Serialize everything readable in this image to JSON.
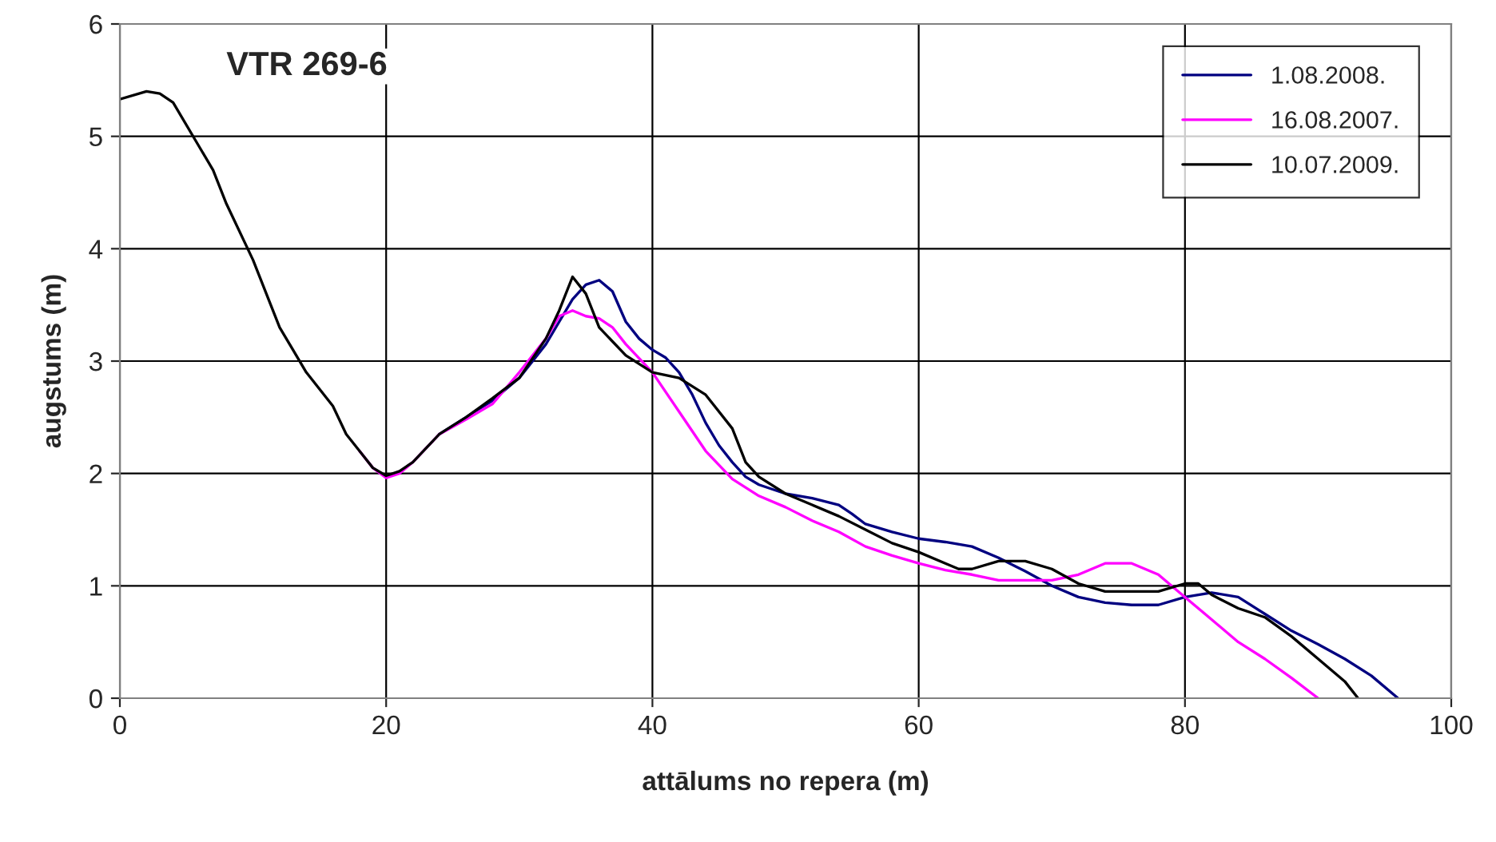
{
  "chart_data": {
    "type": "line",
    "title": "VTR 269-6",
    "xlabel": "attālums no repera (m)",
    "ylabel": "augstums (m)",
    "xlim": [
      0,
      100
    ],
    "xticks": [
      0,
      20,
      40,
      60,
      80,
      100
    ],
    "ylim": [
      0,
      6
    ],
    "yticks": [
      0,
      1,
      2,
      3,
      4,
      5,
      6
    ],
    "grid": true,
    "legend": "top right",
    "line_style": "solid",
    "marker": "none",
    "series": [
      {
        "name": "1.08.2008.",
        "color": "#000080",
        "x": [
          24,
          26,
          28,
          30,
          32,
          33,
          34,
          35,
          36,
          37,
          38,
          39,
          40,
          41,
          42,
          43,
          44,
          45,
          46,
          47,
          48,
          50,
          52,
          54,
          55,
          56,
          58,
          60,
          62,
          64,
          66,
          68,
          70,
          72,
          74,
          76,
          78,
          80,
          82,
          84,
          86,
          88,
          90,
          92,
          94,
          96
        ],
        "values": [
          2.35,
          2.5,
          2.65,
          2.85,
          3.15,
          3.35,
          3.55,
          3.68,
          3.72,
          3.62,
          3.35,
          3.2,
          3.1,
          3.03,
          2.9,
          2.7,
          2.45,
          2.25,
          2.1,
          1.97,
          1.9,
          1.82,
          1.78,
          1.72,
          1.64,
          1.55,
          1.48,
          1.42,
          1.39,
          1.35,
          1.25,
          1.13,
          1.0,
          0.9,
          0.85,
          0.83,
          0.83,
          0.9,
          0.94,
          0.9,
          0.75,
          0.6,
          0.48,
          0.35,
          0.2,
          0
        ]
      },
      {
        "name": "16.08.2007.",
        "color": "#ff00ff",
        "x": [
          18,
          19,
          20,
          21,
          22,
          24,
          26,
          28,
          30,
          32,
          33,
          34,
          35,
          36,
          37,
          38,
          40,
          42,
          44,
          46,
          48,
          50,
          52,
          54,
          56,
          58,
          60,
          62,
          64,
          66,
          68,
          70,
          72,
          74,
          76,
          78,
          80,
          82,
          84,
          86,
          88,
          90
        ],
        "values": [
          2.2,
          2.05,
          1.96,
          2.0,
          2.1,
          2.35,
          2.48,
          2.62,
          2.9,
          3.2,
          3.4,
          3.45,
          3.4,
          3.38,
          3.3,
          3.15,
          2.9,
          2.55,
          2.2,
          1.95,
          1.8,
          1.7,
          1.58,
          1.48,
          1.35,
          1.27,
          1.2,
          1.14,
          1.1,
          1.05,
          1.05,
          1.05,
          1.1,
          1.2,
          1.2,
          1.1,
          0.9,
          0.7,
          0.5,
          0.35,
          0.18,
          0
        ]
      },
      {
        "name": "10.07.2009.",
        "color": "#000000",
        "x": [
          0,
          2,
          3,
          4,
          6,
          7,
          8,
          10,
          11,
          12,
          13,
          14,
          16,
          17,
          18,
          19,
          20,
          21,
          22,
          24,
          26,
          28,
          30,
          32,
          33,
          34,
          35,
          36,
          38,
          40,
          42,
          44,
          46,
          47,
          48,
          50,
          52,
          54,
          56,
          58,
          60,
          62,
          63,
          64,
          66,
          68,
          70,
          72,
          74,
          76,
          78,
          80,
          81,
          82,
          84,
          86,
          88,
          90,
          92,
          93
        ],
        "values": [
          5.33,
          5.4,
          5.38,
          5.3,
          4.9,
          4.7,
          4.4,
          3.9,
          3.6,
          3.3,
          3.1,
          2.9,
          2.6,
          2.35,
          2.2,
          2.05,
          1.98,
          2.02,
          2.1,
          2.35,
          2.5,
          2.67,
          2.85,
          3.2,
          3.45,
          3.75,
          3.6,
          3.3,
          3.05,
          2.9,
          2.85,
          2.7,
          2.4,
          2.1,
          1.97,
          1.82,
          1.72,
          1.62,
          1.5,
          1.38,
          1.3,
          1.2,
          1.15,
          1.15,
          1.22,
          1.22,
          1.15,
          1.02,
          0.95,
          0.95,
          0.95,
          1.02,
          1.02,
          0.92,
          0.8,
          0.72,
          0.55,
          0.35,
          0.15,
          0
        ]
      }
    ]
  }
}
